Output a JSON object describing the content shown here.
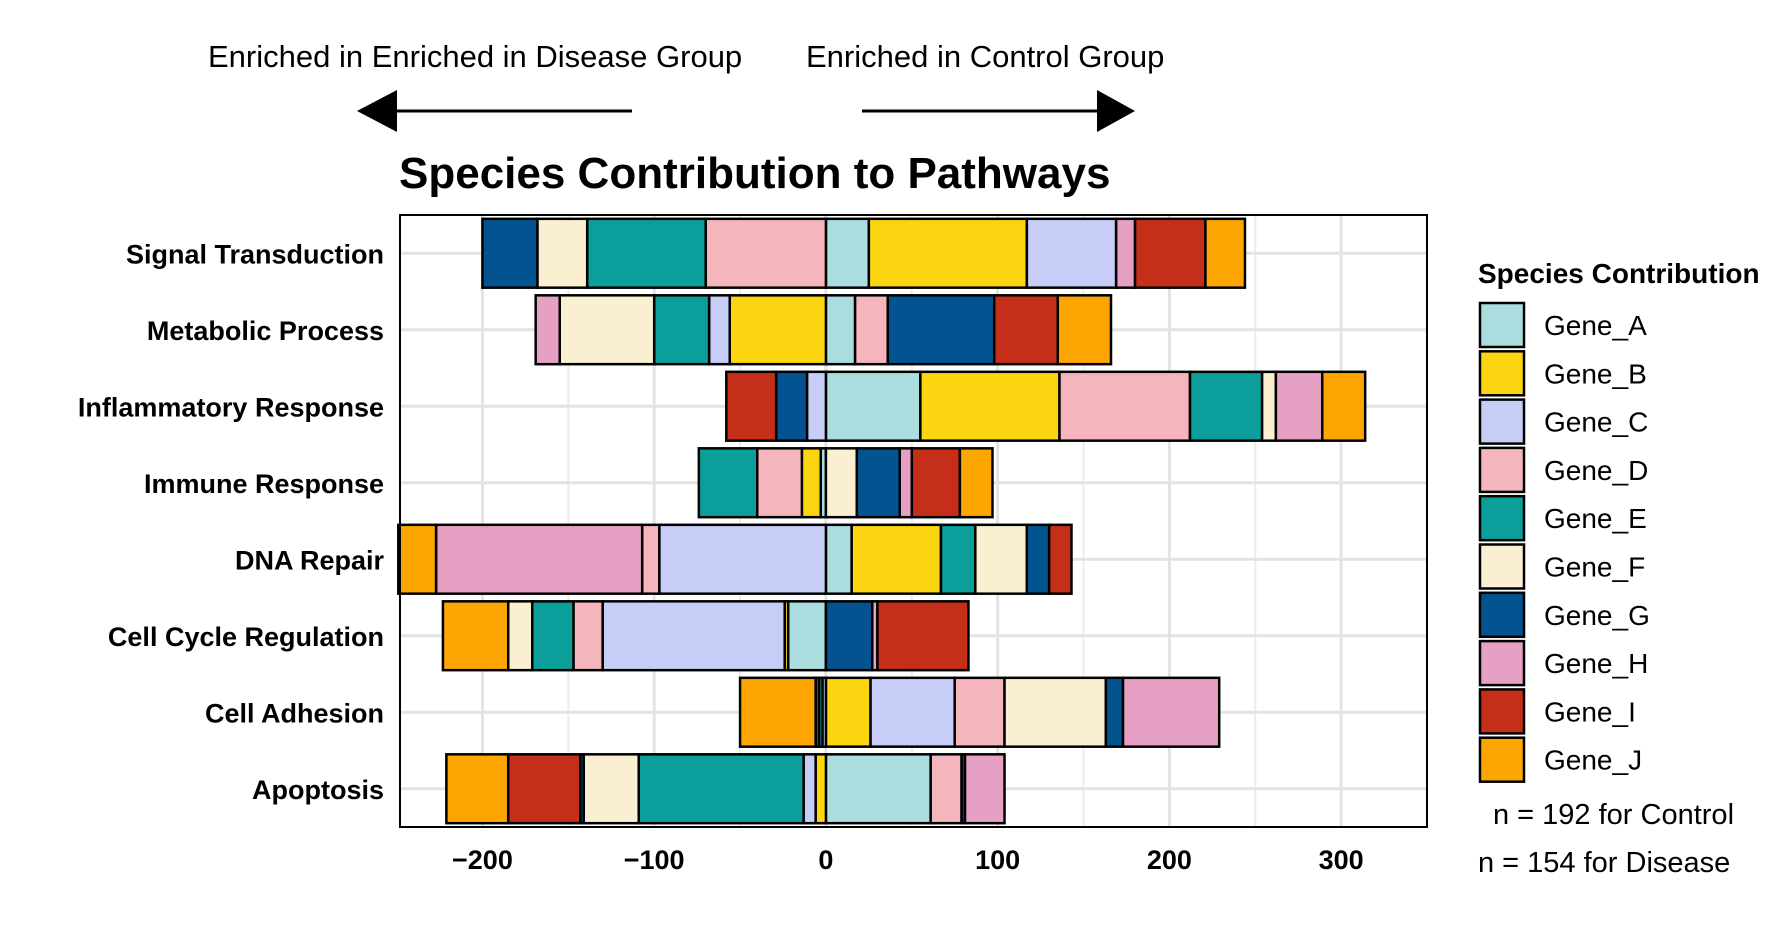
{
  "annotations": {
    "left_label": "Enriched in Enriched in Disease Group",
    "right_label": "Enriched in Control Group"
  },
  "legend": {
    "title": "Species Contribution"
  },
  "notes": {
    "control": "n = 192 for Control",
    "disease": "n = 154 for Disease"
  },
  "chart_data": {
    "type": "bar",
    "orientation": "horizontal",
    "stacked": "diverging",
    "title": "Species Contribution to Pathways",
    "xlabel": "",
    "ylabel": "",
    "xlim": [
      -248,
      350
    ],
    "xticks": [
      -200,
      -100,
      0,
      100,
      200,
      300
    ],
    "xtick_labels": [
      "−200",
      "−100",
      "0",
      "100",
      "200",
      "300"
    ],
    "grid": true,
    "legend_position": "right",
    "categories": [
      "Signal Transduction",
      "Metabolic Process",
      "Inflammatory Response",
      "Immune Response",
      "DNA Repair",
      "Cell Cycle Regulation",
      "Cell Adhesion",
      "Apoptosis"
    ],
    "series": [
      {
        "name": "Gene_A",
        "color": "#ABDDDE",
        "neg": [
          0,
          0,
          0,
          -3,
          0,
          -22,
          0,
          0
        ],
        "pos": [
          25,
          17,
          55,
          0,
          15,
          0,
          0,
          61
        ]
      },
      {
        "name": "Gene_B",
        "color": "#FAD510",
        "neg": [
          0,
          -56,
          0,
          -11,
          0,
          -2,
          0,
          -6
        ],
        "pos": [
          92,
          0,
          81,
          0,
          52,
          0,
          26,
          0
        ]
      },
      {
        "name": "Gene_C",
        "color": "#C6CDF7",
        "neg": [
          0,
          -12,
          -11,
          0,
          -97,
          -106,
          -2,
          -7
        ],
        "pos": [
          52,
          0,
          0,
          0,
          0,
          0,
          49,
          0
        ]
      },
      {
        "name": "Gene_D",
        "color": "#F4B5BD",
        "neg": [
          -70,
          0,
          0,
          -26,
          -10,
          -17,
          0,
          0
        ],
        "pos": [
          0,
          19,
          76,
          0,
          0,
          0,
          29,
          18
        ]
      },
      {
        "name": "Gene_E",
        "color": "#0B9E9A",
        "neg": [
          -69,
          -32,
          0,
          -34,
          0,
          -24,
          -2,
          -96
        ],
        "pos": [
          0,
          0,
          42,
          0,
          20,
          0,
          0,
          0
        ]
      },
      {
        "name": "Gene_F",
        "color": "#FAEFD1",
        "neg": [
          -29,
          -55,
          0,
          0,
          0,
          -14,
          0,
          -32
        ],
        "pos": [
          0,
          0,
          8,
          18,
          30,
          0,
          59,
          0
        ]
      },
      {
        "name": "Gene_G",
        "color": "#02538F",
        "neg": [
          -32,
          0,
          -18,
          0,
          0,
          0,
          0,
          -2
        ],
        "pos": [
          0,
          62,
          0,
          25,
          13,
          27,
          10,
          2
        ]
      },
      {
        "name": "Gene_H",
        "color": "#E6A0C4",
        "neg": [
          0,
          -14,
          0,
          0,
          -120,
          0,
          0,
          0
        ],
        "pos": [
          11,
          0,
          27,
          7,
          0,
          3,
          56,
          23
        ]
      },
      {
        "name": "Gene_I",
        "color": "#C52E19",
        "neg": [
          0,
          0,
          -29,
          0,
          0,
          0,
          -2,
          -42
        ],
        "pos": [
          41,
          37,
          0,
          28,
          13,
          53,
          0,
          0
        ]
      },
      {
        "name": "Gene_J",
        "color": "#FDA601",
        "neg": [
          0,
          0,
          0,
          0,
          -22,
          -38,
          -44,
          -36
        ],
        "pos": [
          23,
          31,
          25,
          19,
          0,
          0,
          0,
          0
        ]
      }
    ]
  }
}
